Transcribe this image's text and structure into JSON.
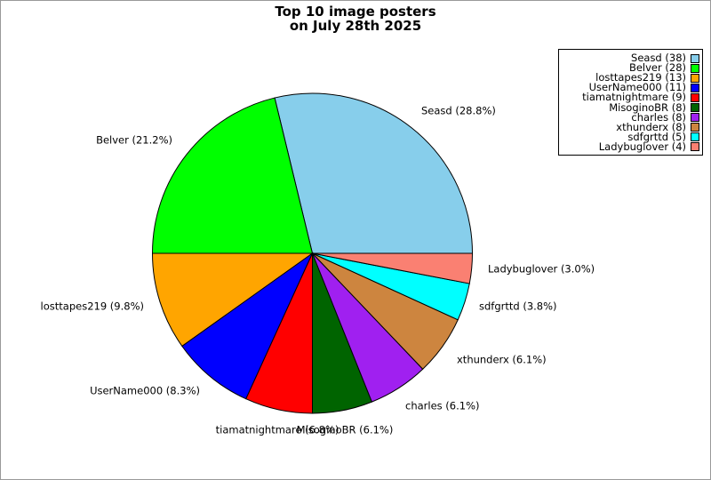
{
  "title": {
    "line1": "Top 10 image posters",
    "line2": "on July 28th 2025"
  },
  "chart_data": {
    "type": "pie",
    "title": "Top 10 image posters on July 28th 2025",
    "start_angle_deg": 0,
    "direction": "counterclockwise",
    "legend_position": "upper right",
    "edge_color": "#000000",
    "slices": [
      {
        "name": "Seasd",
        "count": 38,
        "percent": 28.8,
        "label_display": "Seasd (28.8%)",
        "legend": "Seasd (38)",
        "color": "#87CEEB"
      },
      {
        "name": "Belver",
        "count": 28,
        "percent": 21.2,
        "label_display": "Belver (21.2%)",
        "legend": "Belver (28)",
        "color": "#00FF00"
      },
      {
        "name": "losttapes219",
        "count": 13,
        "percent": 9.8,
        "label_display": "losttapes219 (9.8%)",
        "legend": "losttapes219 (13)",
        "color": "#FFA500"
      },
      {
        "name": "UserName000",
        "count": 11,
        "percent": 8.3,
        "label_display": "UserName000 (8.3%)",
        "legend": "UserName000 (11)",
        "color": "#0000FF"
      },
      {
        "name": "tiamatnightmare",
        "count": 9,
        "percent": 6.8,
        "label_display": "tiamatnightmare (6.8%)",
        "legend": "tiamatnightmare (9)",
        "color": "#FF0000"
      },
      {
        "name": "MisoginoBR",
        "count": 8,
        "percent": 6.1,
        "label_display": "MisoginoBR (6.1%)",
        "legend": "MisoginoBR (8)",
        "color": "#006400"
      },
      {
        "name": "charles",
        "count": 8,
        "percent": 6.1,
        "label_display": "charles (6.1%)",
        "legend": "charles (8)",
        "color": "#A020F0"
      },
      {
        "name": "xthunderx",
        "count": 8,
        "percent": 6.1,
        "label_display": "xthunderx (6.1%)",
        "legend": "xthunderx (8)",
        "color": "#CD853F"
      },
      {
        "name": "sdfgrttd",
        "count": 5,
        "percent": 3.8,
        "label_display": "sdfgrttd (3.8%)",
        "legend": "sdfgrttd (5)",
        "color": "#00FFFF"
      },
      {
        "name": "Ladybuglover",
        "count": 4,
        "percent": 3.0,
        "label_display": "Ladybuglover (3.0%)",
        "legend": "Ladybuglover (4)",
        "color": "#FA8072"
      }
    ]
  }
}
